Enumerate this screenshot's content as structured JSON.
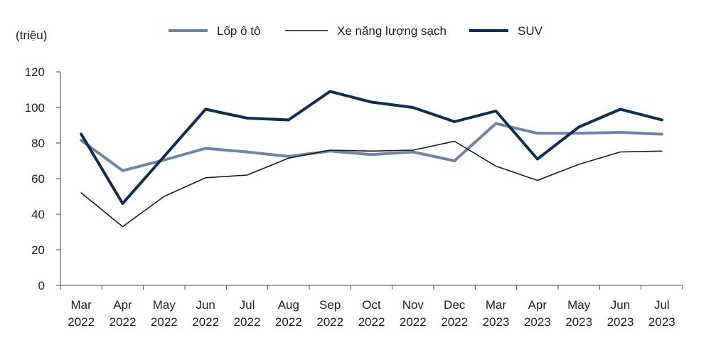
{
  "chart_data": {
    "type": "line",
    "y_unit_label": "(triệu)",
    "ylim": [
      0,
      120
    ],
    "yticks": [
      0,
      20,
      40,
      60,
      80,
      100,
      120
    ],
    "grid": false,
    "legend_position": "top",
    "categories": [
      [
        "Mar",
        "2022"
      ],
      [
        "Apr",
        "2022"
      ],
      [
        "May",
        "2022"
      ],
      [
        "Jun",
        "2022"
      ],
      [
        "Jul",
        "2022"
      ],
      [
        "Aug",
        "2022"
      ],
      [
        "Sep",
        "2022"
      ],
      [
        "Oct",
        "2022"
      ],
      [
        "Nov",
        "2022"
      ],
      [
        "Dec",
        "2022"
      ],
      [
        "Mar",
        "2023"
      ],
      [
        "Apr",
        "2023"
      ],
      [
        "May",
        "2023"
      ],
      [
        "Jun",
        "2023"
      ],
      [
        "Jul",
        "2023"
      ]
    ],
    "series": [
      {
        "name": "Lốp ô tô",
        "color": "#7085a5",
        "values": [
          81.5,
          64.5,
          70.5,
          77,
          75,
          72.5,
          75.5,
          73.5,
          75,
          70,
          91,
          85.5,
          85.5,
          86,
          85
        ]
      },
      {
        "name": "Xe năng lượng sạch",
        "color": "#1a1a1a",
        "values": [
          52,
          33,
          50,
          60.5,
          62,
          71.5,
          76,
          75.5,
          76,
          81,
          67,
          59,
          68,
          75,
          75.5
        ]
      },
      {
        "name": "SUV",
        "color": "#0f2c52",
        "values": [
          85,
          46,
          72.5,
          99,
          94,
          93,
          109,
          103,
          100,
          92,
          98,
          71,
          89,
          99,
          93
        ]
      }
    ]
  }
}
